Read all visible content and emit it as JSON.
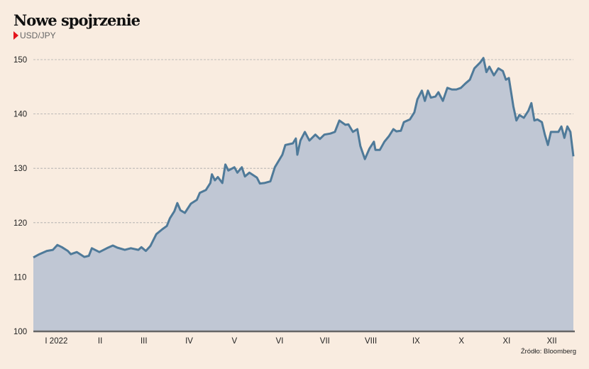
{
  "title": "Nowe spojrzenie",
  "subtitle": "USD/JPY",
  "source": "Źródło: Bloomberg",
  "colors": {
    "background": "#f9ece0",
    "line": "#4f7a99",
    "area": "#c0c7d4",
    "marker": "#e4141b"
  },
  "chart_data": {
    "type": "area",
    "title": "Nowe spojrzenie",
    "subtitle": "USD/JPY",
    "ylim": [
      100,
      150
    ],
    "yticks": [
      100,
      110,
      120,
      130,
      140,
      150
    ],
    "grid": "horizontal dashed",
    "xtick_labels": [
      "I 2022",
      "II",
      "III",
      "IV",
      "V",
      "VI",
      "VII",
      "VIII",
      "IX",
      "X",
      "XI",
      "XII"
    ],
    "series": [
      {
        "x": [
          "2022-01-03",
          "2022-01-07",
          "2022-01-12",
          "2022-01-16",
          "2022-01-19",
          "2022-01-22",
          "2022-01-26",
          "2022-01-28",
          "2022-02-01",
          "2022-02-06",
          "2022-02-09",
          "2022-02-11",
          "2022-02-16",
          "2022-02-21",
          "2022-02-25",
          "2022-02-28",
          "2022-03-05",
          "2022-03-09",
          "2022-03-14",
          "2022-03-16",
          "2022-03-19",
          "2022-03-22",
          "2022-03-26",
          "2022-03-30",
          "2022-04-02",
          "2022-04-04",
          "2022-04-07",
          "2022-04-09",
          "2022-04-11",
          "2022-04-14",
          "2022-04-18",
          "2022-04-22",
          "2022-04-24",
          "2022-04-28",
          "2022-05-01",
          "2022-05-02",
          "2022-05-04",
          "2022-05-06",
          "2022-05-09",
          "2022-05-11",
          "2022-05-13",
          "2022-05-17",
          "2022-05-19",
          "2022-05-22",
          "2022-05-24",
          "2022-05-27",
          "2022-06-01",
          "2022-06-03",
          "2022-06-06",
          "2022-06-10",
          "2022-06-13",
          "2022-06-18",
          "2022-06-20",
          "2022-06-25",
          "2022-06-27",
          "2022-06-28",
          "2022-06-30",
          "2022-07-03",
          "2022-07-06",
          "2022-07-10",
          "2022-07-13",
          "2022-07-16",
          "2022-07-20",
          "2022-07-23",
          "2022-07-26",
          "2022-07-30",
          "2022-08-01",
          "2022-08-04",
          "2022-08-07",
          "2022-08-09",
          "2022-08-12",
          "2022-08-15",
          "2022-08-18",
          "2022-08-19",
          "2022-08-22",
          "2022-08-25",
          "2022-08-28",
          "2022-08-31",
          "2022-09-02",
          "2022-09-05",
          "2022-09-07",
          "2022-09-11",
          "2022-09-14",
          "2022-09-16",
          "2022-09-19",
          "2022-09-21",
          "2022-09-23",
          "2022-09-25",
          "2022-09-28",
          "2022-09-30",
          "2022-10-03",
          "2022-10-06",
          "2022-10-09",
          "2022-10-12",
          "2022-10-15",
          "2022-10-18",
          "2022-10-21",
          "2022-10-24",
          "2022-10-28",
          "2022-10-30",
          "2022-11-01",
          "2022-11-03",
          "2022-11-06",
          "2022-11-09",
          "2022-11-12",
          "2022-11-14",
          "2022-11-16",
          "2022-11-19",
          "2022-11-21",
          "2022-11-23",
          "2022-11-26",
          "2022-11-29",
          "2022-12-01",
          "2022-12-03",
          "2022-12-05",
          "2022-12-08",
          "2022-12-10",
          "2022-12-12",
          "2022-12-14",
          "2022-12-17",
          "2022-12-19",
          "2022-12-21",
          "2022-12-23",
          "2022-12-25",
          "2022-12-27",
          "2022-12-29"
        ],
        "y": [
          113.6,
          114.2,
          114.8,
          115.0,
          115.9,
          115.5,
          114.8,
          114.2,
          114.6,
          113.7,
          113.9,
          115.3,
          114.6,
          115.3,
          115.8,
          115.4,
          115.0,
          115.3,
          115.0,
          115.5,
          114.8,
          115.7,
          117.9,
          118.8,
          119.4,
          120.8,
          122.1,
          123.6,
          122.3,
          121.8,
          123.5,
          124.2,
          125.5,
          126.0,
          127.3,
          128.9,
          127.8,
          128.4,
          127.3,
          130.7,
          129.6,
          130.2,
          129.2,
          130.2,
          128.5,
          129.2,
          128.3,
          127.2,
          127.3,
          127.6,
          130.2,
          132.5,
          134.3,
          134.6,
          135.5,
          132.5,
          135.1,
          136.7,
          135.1,
          136.2,
          135.4,
          136.2,
          136.4,
          136.7,
          138.8,
          138.0,
          138.1,
          136.7,
          137.2,
          134.1,
          131.7,
          133.6,
          134.9,
          133.4,
          133.4,
          134.9,
          135.9,
          137.2,
          136.8,
          136.9,
          138.5,
          139.0,
          140.3,
          142.7,
          144.3,
          142.4,
          144.3,
          143.0,
          143.2,
          144.0,
          142.4,
          144.8,
          144.5,
          144.5,
          144.8,
          145.6,
          146.3,
          148.4,
          149.5,
          150.3,
          147.7,
          148.7,
          147.1,
          148.4,
          147.9,
          146.3,
          146.6,
          141.4,
          138.8,
          139.8,
          139.3,
          140.6,
          142.0,
          138.8,
          139.0,
          138.5,
          136.2,
          134.3,
          136.7,
          136.7,
          136.7,
          137.7,
          135.6,
          137.7,
          136.7,
          132.2
        ]
      }
    ]
  }
}
